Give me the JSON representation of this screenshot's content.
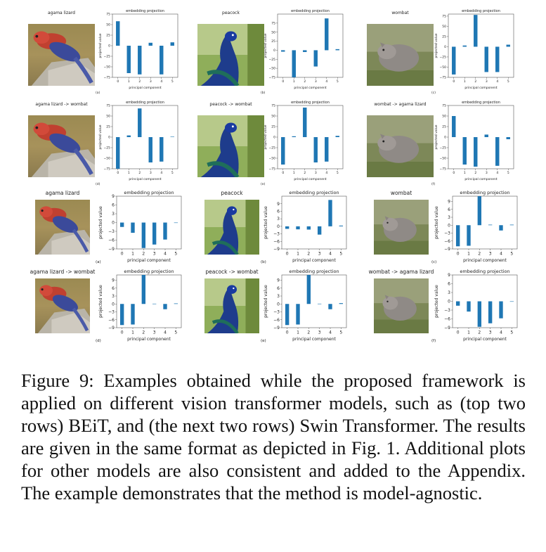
{
  "figure": {
    "caption": "Figure 9: Examples obtained while the proposed framework is applied on different vision transformer models, such as (top two rows) BEiT, and (the next two rows) Swin Transformer. The results are given in the same format as depicted in Fig. 1. Additional plots for other models are also consistent and added to the Appendix. The example demonstrates that the method is model-agnostic.",
    "rows": [
      {
        "panels": [
          {
            "photo_title": "agama lizard",
            "photo": "lizard",
            "chart_title": "embedding projection",
            "letter": "(a)"
          },
          {
            "photo_title": "peacock",
            "photo": "peacock",
            "chart_title": "embedding projection",
            "letter": "(b)"
          },
          {
            "photo_title": "wombat",
            "photo": "wombat",
            "chart_title": "embedding projection",
            "letter": "(c)"
          }
        ]
      },
      {
        "panels": [
          {
            "photo_title": "agama lizard -> wombat",
            "photo": "lizard",
            "chart_title": "embedding projection",
            "letter": "(d)"
          },
          {
            "photo_title": "peacock -> wombat",
            "photo": "peacock",
            "chart_title": "embedding projection",
            "letter": "(e)"
          },
          {
            "photo_title": "wombat -> agama lizard",
            "photo": "wombat",
            "chart_title": "embedding projection",
            "letter": "(f)"
          }
        ]
      },
      {
        "panels": [
          {
            "photo_title": "agama lizard",
            "photo": "lizard",
            "chart_title": "embedding projection",
            "letter": "(a)"
          },
          {
            "photo_title": "peacock",
            "photo": "peacock",
            "chart_title": "embedding projection",
            "letter": "(b)"
          },
          {
            "photo_title": "wombat",
            "photo": "wombat",
            "chart_title": "embedding projection",
            "letter": "(c)"
          }
        ]
      },
      {
        "panels": [
          {
            "photo_title": "agama lizard -> wombat",
            "photo": "lizard",
            "chart_title": "embedding projection",
            "letter": "(d)"
          },
          {
            "photo_title": "peacock -> wombat",
            "photo": "peacock",
            "chart_title": "embedding projection",
            "letter": "(e)"
          },
          {
            "photo_title": "wombat -> agama lizard",
            "photo": "wombat",
            "chart_title": "embedding projection",
            "letter": "(f)"
          }
        ]
      }
    ]
  },
  "chart_data": [
    {
      "type": "bar",
      "title": "embedding projection",
      "xlabel": "principal component",
      "ylabel": "projected value",
      "categories": [
        "0",
        "1",
        "2",
        "3",
        "4",
        "5"
      ],
      "values": [
        58,
        -65,
        -68,
        7,
        -68,
        8
      ],
      "ylim": [
        -75,
        75
      ],
      "yticks": [
        -75,
        -50,
        -25,
        0,
        25,
        50,
        75
      ],
      "color": "#1f77b4"
    },
    {
      "type": "bar",
      "title": "embedding projection",
      "xlabel": "principal component",
      "ylabel": "projected value",
      "categories": [
        "0",
        "1",
        "2",
        "3",
        "4",
        "5"
      ],
      "values": [
        -4,
        -75,
        -5,
        -45,
        88,
        3
      ],
      "ylim": [
        -75,
        100
      ],
      "yticks": [
        -75,
        -50,
        -25,
        0,
        25,
        50,
        75
      ],
      "color": "#1f77b4"
    },
    {
      "type": "bar",
      "title": "embedding projection",
      "xlabel": "principal component",
      "ylabel": "projected value",
      "categories": [
        "0",
        "1",
        "2",
        "3",
        "4",
        "5"
      ],
      "values": [
        -68,
        3,
        78,
        -62,
        -62,
        5
      ],
      "ylim": [
        -75,
        80
      ],
      "yticks": [
        -75,
        -50,
        -25,
        0,
        25,
        50,
        75
      ],
      "color": "#1f77b4"
    },
    {
      "type": "bar",
      "title": "embedding projection",
      "xlabel": "principal component",
      "ylabel": "projected value",
      "categories": [
        "0",
        "1",
        "2",
        "3",
        "4",
        "5"
      ],
      "values": [
        -75,
        4,
        68,
        -60,
        -58,
        1
      ],
      "ylim": [
        -75,
        75
      ],
      "yticks": [
        -75,
        -50,
        -25,
        0,
        25,
        50,
        75
      ],
      "color": "#1f77b4"
    },
    {
      "type": "bar",
      "title": "embedding projection",
      "xlabel": "principal component",
      "ylabel": "projected value",
      "categories": [
        "0",
        "1",
        "2",
        "3",
        "4",
        "5"
      ],
      "values": [
        -65,
        2,
        70,
        -60,
        -58,
        3
      ],
      "ylim": [
        -75,
        75
      ],
      "yticks": [
        -75,
        -50,
        -25,
        0,
        25,
        50,
        75
      ],
      "color": "#1f77b4"
    },
    {
      "type": "bar",
      "title": "embedding projection",
      "xlabel": "principal component",
      "ylabel": "projected value",
      "categories": [
        "0",
        "1",
        "2",
        "3",
        "4",
        "5"
      ],
      "values": [
        50,
        -65,
        -70,
        6,
        -68,
        -5
      ],
      "ylim": [
        -75,
        75
      ],
      "yticks": [
        -75,
        -50,
        -25,
        0,
        25,
        50,
        75
      ],
      "color": "#1f77b4"
    },
    {
      "type": "bar",
      "title": "embedding projection",
      "xlabel": "principal component",
      "ylabel": "projected value",
      "categories": [
        "0",
        "1",
        "2",
        "3",
        "4",
        "5"
      ],
      "values": [
        -1.5,
        -3.5,
        -8.7,
        -7.5,
        -5.8,
        0
      ],
      "ylim": [
        -9,
        9
      ],
      "yticks": [
        -9,
        -6,
        -3,
        0,
        3,
        6,
        9
      ],
      "color": "#1f77b4"
    },
    {
      "type": "bar",
      "title": "embedding projection",
      "xlabel": "principal component",
      "ylabel": "projected value",
      "categories": [
        "0",
        "1",
        "2",
        "3",
        "4",
        "5"
      ],
      "values": [
        -1.0,
        -1.2,
        -1.3,
        -3.3,
        10.5,
        0.3
      ],
      "ylim": [
        -9,
        12
      ],
      "yticks": [
        -9,
        -6,
        -3,
        0,
        3,
        6,
        9
      ],
      "color": "#1f77b4"
    },
    {
      "type": "bar",
      "title": "embedding projection",
      "xlabel": "principal component",
      "ylabel": "projected value",
      "categories": [
        "0",
        "1",
        "2",
        "3",
        "4",
        "5"
      ],
      "values": [
        -8.0,
        -7.8,
        11.0,
        0.2,
        -2.0,
        0.2
      ],
      "ylim": [
        -9,
        11
      ],
      "yticks": [
        -9,
        -6,
        -3,
        0,
        3,
        6,
        9
      ],
      "color": "#1f77b4"
    },
    {
      "type": "bar",
      "title": "embedding projection",
      "xlabel": "principal component",
      "ylabel": "projected value",
      "categories": [
        "0",
        "1",
        "2",
        "3",
        "4",
        "5"
      ],
      "values": [
        -8.0,
        -7.8,
        11.0,
        0.1,
        -2.0,
        0.2
      ],
      "ylim": [
        -9,
        11
      ],
      "yticks": [
        -9,
        -6,
        -3,
        0,
        3,
        6,
        9
      ],
      "color": "#1f77b4"
    },
    {
      "type": "bar",
      "title": "embedding projection",
      "xlabel": "principal component",
      "ylabel": "projected value",
      "categories": [
        "0",
        "1",
        "2",
        "3",
        "4",
        "5"
      ],
      "values": [
        -8.0,
        -7.8,
        11.0,
        0.1,
        -2.0,
        0.3
      ],
      "ylim": [
        -9,
        11
      ],
      "yticks": [
        -9,
        -6,
        -3,
        0,
        3,
        6,
        9
      ],
      "color": "#1f77b4"
    },
    {
      "type": "bar",
      "title": "embedding projection",
      "xlabel": "principal component",
      "ylabel": "projected value",
      "categories": [
        "0",
        "1",
        "2",
        "3",
        "4",
        "5"
      ],
      "values": [
        -1.5,
        -3.5,
        -8.7,
        -7.5,
        -5.8,
        0
      ],
      "ylim": [
        -9,
        9
      ],
      "yticks": [
        -9,
        -6,
        -3,
        0,
        3,
        6,
        9
      ],
      "color": "#1f77b4"
    }
  ]
}
